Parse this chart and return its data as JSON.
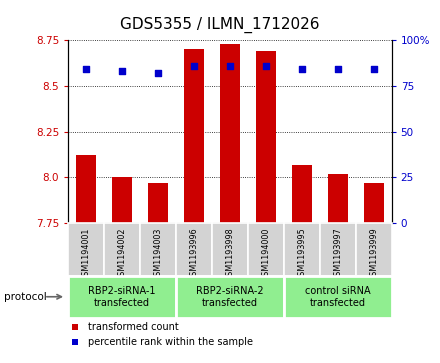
{
  "title": "GDS5355 / ILMN_1712026",
  "samples": [
    "GSM1194001",
    "GSM1194002",
    "GSM1194003",
    "GSM1193996",
    "GSM1193998",
    "GSM1194000",
    "GSM1193995",
    "GSM1193997",
    "GSM1193999"
  ],
  "bar_values": [
    8.12,
    8.0,
    7.97,
    8.7,
    8.73,
    8.69,
    8.07,
    8.02,
    7.97
  ],
  "percentile_values": [
    84,
    83,
    82,
    86,
    86,
    86,
    84,
    84,
    84
  ],
  "bar_bottom": 7.75,
  "ylim_left": [
    7.75,
    8.75
  ],
  "ylim_right": [
    0,
    100
  ],
  "yticks_left": [
    7.75,
    8.0,
    8.25,
    8.5,
    8.75
  ],
  "yticks_right": [
    0,
    25,
    50,
    75,
    100
  ],
  "bar_color": "#cc0000",
  "dot_color": "#0000cc",
  "groups": [
    {
      "label": "RBP2-siRNA-1\ntransfected",
      "start": 0,
      "end": 3,
      "color": "#90ee90"
    },
    {
      "label": "RBP2-siRNA-2\ntransfected",
      "start": 3,
      "end": 6,
      "color": "#90ee90"
    },
    {
      "label": "control siRNA\ntransfected",
      "start": 6,
      "end": 9,
      "color": "#90ee90"
    }
  ],
  "xlabel_area_color": "#d3d3d3",
  "legend_items": [
    {
      "color": "#cc0000",
      "label": "transformed count"
    },
    {
      "color": "#0000cc",
      "label": "percentile rank within the sample"
    }
  ],
  "protocol_label": "protocol",
  "left_tick_color": "#cc0000",
  "right_tick_color": "#0000cc",
  "title_fontsize": 11,
  "tick_fontsize": 7.5,
  "bar_width": 0.55,
  "group_separator_color": "white",
  "spine_color": "#888888"
}
